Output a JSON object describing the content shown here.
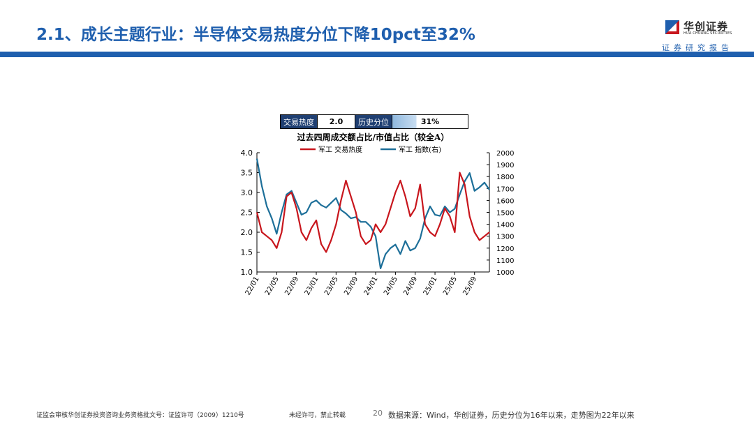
{
  "slide": {
    "title": "2.1、成长主题行业：半导体交易热度分位下降10pct至32%",
    "logo_cn": "华创证券",
    "logo_en": "HUA CHUANG SECURITIES",
    "logo_sub": "证券研究报告",
    "footer_left": "证监会审核华创证券投资咨询业务资格批文号：证监许可（2009）1210号",
    "footer_mid": "未经许可，禁止转载",
    "page_number": "20",
    "source": "数据来源：Wind，华创证券，历史分位为16年以来，走势图为22年以来"
  },
  "stats": {
    "heat_label": "交易热度",
    "heat_value": "2.0",
    "pct_label": "历史分位",
    "pct_value": "31%",
    "pct_fraction": 0.31
  },
  "colors": {
    "primary": "#1f5fae",
    "series_heat": "#c8161d",
    "series_index": "#1d6f99"
  },
  "chart_data": {
    "type": "line",
    "title": "过去四周成交额占比/市值占比（较全A）",
    "legend_placement": "top",
    "grid": false,
    "x_ticks": [
      "22/01",
      "22/05",
      "22/09",
      "23/01",
      "23/05",
      "23/09",
      "24/01",
      "24/05",
      "24/09",
      "25/01",
      "25/05",
      "25/09"
    ],
    "x_range": [
      "2022-01",
      "2025-12"
    ],
    "y_left": {
      "range": [
        1.0,
        4.0
      ],
      "ticks": [
        "1.0",
        "1.5",
        "2.0",
        "2.5",
        "3.0",
        "3.5",
        "4.0"
      ]
    },
    "y_right": {
      "range": [
        1000,
        2000
      ],
      "ticks": [
        "1000",
        "1100",
        "1200",
        "1300",
        "1400",
        "1500",
        "1600",
        "1700",
        "1800",
        "1900",
        "2000"
      ]
    },
    "series": [
      {
        "name": "军工 交易热度",
        "axis": "left",
        "x": [
          "2022-01",
          "2022-02",
          "2022-03",
          "2022-04",
          "2022-05",
          "2022-06",
          "2022-07",
          "2022-08",
          "2022-09",
          "2022-10",
          "2022-11",
          "2022-12",
          "2023-01",
          "2023-02",
          "2023-03",
          "2023-04",
          "2023-05",
          "2023-06",
          "2023-07",
          "2023-08",
          "2023-09",
          "2023-10",
          "2023-11",
          "2023-12",
          "2024-01",
          "2024-02",
          "2024-03",
          "2024-04",
          "2024-05",
          "2024-06",
          "2024-07",
          "2024-08",
          "2024-09",
          "2024-10",
          "2024-11",
          "2024-12",
          "2025-01",
          "2025-02",
          "2025-03",
          "2025-04",
          "2025-05",
          "2025-06",
          "2025-07",
          "2025-08",
          "2025-09",
          "2025-10",
          "2025-11",
          "2025-12"
        ],
        "values": [
          2.5,
          2.0,
          1.9,
          1.8,
          1.6,
          2.0,
          2.9,
          3.0,
          2.6,
          2.0,
          1.8,
          2.1,
          2.3,
          1.7,
          1.5,
          1.8,
          2.2,
          2.8,
          3.3,
          2.9,
          2.5,
          1.9,
          1.7,
          1.8,
          2.2,
          2.0,
          2.2,
          2.6,
          3.0,
          3.3,
          2.9,
          2.4,
          2.6,
          3.2,
          2.2,
          2.0,
          1.9,
          2.2,
          2.6,
          2.4,
          2.0,
          3.5,
          3.2,
          2.4,
          2.0,
          1.8,
          1.9,
          2.0
        ]
      },
      {
        "name": "军工 指数(右)",
        "axis": "right",
        "x": [
          "2022-01",
          "2022-02",
          "2022-03",
          "2022-04",
          "2022-05",
          "2022-06",
          "2022-07",
          "2022-08",
          "2022-09",
          "2022-10",
          "2022-11",
          "2022-12",
          "2023-01",
          "2023-02",
          "2023-03",
          "2023-04",
          "2023-05",
          "2023-06",
          "2023-07",
          "2023-08",
          "2023-09",
          "2023-10",
          "2023-11",
          "2023-12",
          "2024-01",
          "2024-02",
          "2024-03",
          "2024-04",
          "2024-05",
          "2024-06",
          "2024-07",
          "2024-08",
          "2024-09",
          "2024-10",
          "2024-11",
          "2024-12",
          "2025-01",
          "2025-02",
          "2025-03",
          "2025-04",
          "2025-05",
          "2025-06",
          "2025-07",
          "2025-08",
          "2025-09",
          "2025-10",
          "2025-11",
          "2025-12"
        ],
        "values": [
          1950,
          1720,
          1550,
          1450,
          1320,
          1500,
          1650,
          1680,
          1580,
          1480,
          1500,
          1580,
          1600,
          1560,
          1540,
          1580,
          1620,
          1520,
          1490,
          1450,
          1460,
          1420,
          1420,
          1380,
          1300,
          1030,
          1150,
          1200,
          1230,
          1150,
          1260,
          1180,
          1200,
          1280,
          1450,
          1550,
          1480,
          1470,
          1550,
          1500,
          1530,
          1650,
          1760,
          1830,
          1680,
          1710,
          1750,
          1690
        ]
      }
    ]
  }
}
